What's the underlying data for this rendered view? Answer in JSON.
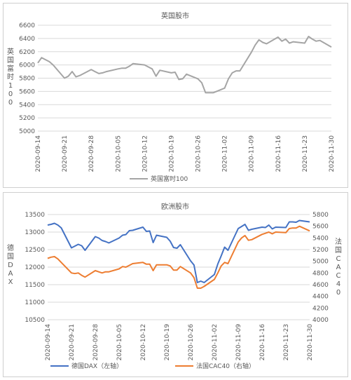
{
  "chart_data": [
    {
      "type": "line",
      "title": "英国股市",
      "ylabel": "英国富时100",
      "ylim": [
        5000,
        6600
      ],
      "yticks": [
        5000,
        5200,
        5400,
        5600,
        5800,
        6000,
        6200,
        6400,
        6600
      ],
      "x_tick_labels": [
        "2020-09-14",
        "2020-09-21",
        "2020-09-28",
        "2020-10-05",
        "2020-10-12",
        "2020-10-19",
        "2020-10-26",
        "2020-11-02",
        "2020-11-09",
        "2020-11-16",
        "2020-11-23",
        "2020-11-30"
      ],
      "legend_position": "bottom",
      "series": [
        {
          "name": "英国富时100",
          "color": "#a5a5a5",
          "points": [
            [
              "2020-09-14",
              6030
            ],
            [
              "2020-09-15",
              6110
            ],
            [
              "2020-09-16",
              6080
            ],
            [
              "2020-09-17",
              6050
            ],
            [
              "2020-09-18",
              6000
            ],
            [
              "2020-09-21",
              5800
            ],
            [
              "2020-09-22",
              5830
            ],
            [
              "2020-09-23",
              5900
            ],
            [
              "2020-09-24",
              5820
            ],
            [
              "2020-09-25",
              5840
            ],
            [
              "2020-09-28",
              5930
            ],
            [
              "2020-09-29",
              5900
            ],
            [
              "2020-09-30",
              5870
            ],
            [
              "2020-10-01",
              5880
            ],
            [
              "2020-10-02",
              5900
            ],
            [
              "2020-10-05",
              5940
            ],
            [
              "2020-10-06",
              5950
            ],
            [
              "2020-10-07",
              5950
            ],
            [
              "2020-10-08",
              5980
            ],
            [
              "2020-10-09",
              6020
            ],
            [
              "2020-10-12",
              6000
            ],
            [
              "2020-10-13",
              5970
            ],
            [
              "2020-10-14",
              5940
            ],
            [
              "2020-10-15",
              5830
            ],
            [
              "2020-10-16",
              5920
            ],
            [
              "2020-10-19",
              5880
            ],
            [
              "2020-10-20",
              5890
            ],
            [
              "2020-10-21",
              5780
            ],
            [
              "2020-10-22",
              5790
            ],
            [
              "2020-10-23",
              5860
            ],
            [
              "2020-10-26",
              5790
            ],
            [
              "2020-10-27",
              5730
            ],
            [
              "2020-10-28",
              5580
            ],
            [
              "2020-10-29",
              5580
            ],
            [
              "2020-10-30",
              5580
            ],
            [
              "2020-11-02",
              5650
            ],
            [
              "2020-11-03",
              5790
            ],
            [
              "2020-11-04",
              5880
            ],
            [
              "2020-11-05",
              5910
            ],
            [
              "2020-11-06",
              5910
            ],
            [
              "2020-11-09",
              6190
            ],
            [
              "2020-11-10",
              6300
            ],
            [
              "2020-11-11",
              6380
            ],
            [
              "2020-11-12",
              6340
            ],
            [
              "2020-11-13",
              6320
            ],
            [
              "2020-11-16",
              6420
            ],
            [
              "2020-11-17",
              6360
            ],
            [
              "2020-11-18",
              6390
            ],
            [
              "2020-11-19",
              6330
            ],
            [
              "2020-11-20",
              6350
            ],
            [
              "2020-11-23",
              6330
            ],
            [
              "2020-11-24",
              6430
            ],
            [
              "2020-11-25",
              6390
            ],
            [
              "2020-11-26",
              6360
            ],
            [
              "2020-11-27",
              6370
            ],
            [
              "2020-11-30",
              6270
            ]
          ]
        }
      ]
    },
    {
      "type": "line",
      "title": "欧洲股市",
      "ylabel_left": "德国DAX",
      "ylabel_right": "法国CAC40",
      "ylim_left": [
        10500,
        13500
      ],
      "yticks_left": [
        10500,
        11000,
        11500,
        12000,
        12500,
        13000,
        13500
      ],
      "ylim_right": [
        4000,
        5800
      ],
      "yticks_right": [
        4000,
        4200,
        4400,
        4600,
        4800,
        5000,
        5200,
        5400,
        5600,
        5800
      ],
      "x_tick_labels": [
        "2020-09-14",
        "2020-09-21",
        "2020-09-28",
        "2020-10-05",
        "2020-10-12",
        "2020-10-19",
        "2020-10-26",
        "2020-11-02",
        "2020-11-09",
        "2020-11-16",
        "2020-11-23",
        "2020-11-30"
      ],
      "legend_position": "bottom",
      "series": [
        {
          "name": "德国DAX（左轴）",
          "axis": "left",
          "color": "#4472c4",
          "points": [
            [
              "2020-09-14",
              13200
            ],
            [
              "2020-09-15",
              13220
            ],
            [
              "2020-09-16",
              13250
            ],
            [
              "2020-09-17",
              13200
            ],
            [
              "2020-09-18",
              13120
            ],
            [
              "2020-09-21",
              12550
            ],
            [
              "2020-09-22",
              12600
            ],
            [
              "2020-09-23",
              12650
            ],
            [
              "2020-09-24",
              12610
            ],
            [
              "2020-09-25",
              12480
            ],
            [
              "2020-09-28",
              12870
            ],
            [
              "2020-09-29",
              12830
            ],
            [
              "2020-09-30",
              12760
            ],
            [
              "2020-10-01",
              12730
            ],
            [
              "2020-10-02",
              12690
            ],
            [
              "2020-10-05",
              12830
            ],
            [
              "2020-10-06",
              12910
            ],
            [
              "2020-10-07",
              12930
            ],
            [
              "2020-10-08",
              13040
            ],
            [
              "2020-10-09",
              13050
            ],
            [
              "2020-10-12",
              13140
            ],
            [
              "2020-10-13",
              13020
            ],
            [
              "2020-10-14",
              13030
            ],
            [
              "2020-10-15",
              12700
            ],
            [
              "2020-10-16",
              12910
            ],
            [
              "2020-10-19",
              12850
            ],
            [
              "2020-10-20",
              12740
            ],
            [
              "2020-10-21",
              12560
            ],
            [
              "2020-10-22",
              12540
            ],
            [
              "2020-10-23",
              12640
            ],
            [
              "2020-10-26",
              12180
            ],
            [
              "2020-10-27",
              12060
            ],
            [
              "2020-10-28",
              11560
            ],
            [
              "2020-10-29",
              11600
            ],
            [
              "2020-10-30",
              11560
            ],
            [
              "2020-11-02",
              11790
            ],
            [
              "2020-11-03",
              12090
            ],
            [
              "2020-11-04",
              12320
            ],
            [
              "2020-11-05",
              12570
            ],
            [
              "2020-11-06",
              12480
            ],
            [
              "2020-11-09",
              13100
            ],
            [
              "2020-11-10",
              13160
            ],
            [
              "2020-11-11",
              13220
            ],
            [
              "2020-11-12",
              13050
            ],
            [
              "2020-11-13",
              13080
            ],
            [
              "2020-11-16",
              13140
            ],
            [
              "2020-11-17",
              13130
            ],
            [
              "2020-11-18",
              13200
            ],
            [
              "2020-11-19",
              13090
            ],
            [
              "2020-11-20",
              13140
            ],
            [
              "2020-11-23",
              13130
            ],
            [
              "2020-11-24",
              13290
            ],
            [
              "2020-11-25",
              13290
            ],
            [
              "2020-11-26",
              13280
            ],
            [
              "2020-11-27",
              13330
            ],
            [
              "2020-11-30",
              13290
            ]
          ]
        },
        {
          "name": "法国CAC40（右轴）",
          "axis": "right",
          "color": "#ed7d31",
          "points": [
            [
              "2020-09-14",
              5050
            ],
            [
              "2020-09-15",
              5070
            ],
            [
              "2020-09-16",
              5080
            ],
            [
              "2020-09-17",
              5040
            ],
            [
              "2020-09-18",
              4980
            ],
            [
              "2020-09-21",
              4800
            ],
            [
              "2020-09-22",
              4790
            ],
            [
              "2020-09-23",
              4800
            ],
            [
              "2020-09-24",
              4760
            ],
            [
              "2020-09-25",
              4730
            ],
            [
              "2020-09-28",
              4840
            ],
            [
              "2020-09-29",
              4820
            ],
            [
              "2020-09-30",
              4800
            ],
            [
              "2020-10-01",
              4820
            ],
            [
              "2020-10-02",
              4820
            ],
            [
              "2020-10-05",
              4870
            ],
            [
              "2020-10-06",
              4910
            ],
            [
              "2020-10-07",
              4900
            ],
            [
              "2020-10-08",
              4930
            ],
            [
              "2020-10-09",
              4960
            ],
            [
              "2020-10-12",
              4980
            ],
            [
              "2020-10-13",
              4950
            ],
            [
              "2020-10-14",
              4950
            ],
            [
              "2020-10-15",
              4840
            ],
            [
              "2020-10-16",
              4940
            ],
            [
              "2020-10-19",
              4940
            ],
            [
              "2020-10-20",
              4920
            ],
            [
              "2020-10-21",
              4850
            ],
            [
              "2020-10-22",
              4850
            ],
            [
              "2020-10-23",
              4910
            ],
            [
              "2020-10-26",
              4800
            ],
            [
              "2020-10-27",
              4720
            ],
            [
              "2020-10-28",
              4540
            ],
            [
              "2020-10-29",
              4540
            ],
            [
              "2020-10-30",
              4570
            ],
            [
              "2020-11-02",
              4690
            ],
            [
              "2020-11-03",
              4800
            ],
            [
              "2020-11-04",
              4920
            ],
            [
              "2020-11-05",
              4980
            ],
            [
              "2020-11-06",
              4960
            ],
            [
              "2020-11-09",
              5330
            ],
            [
              "2020-11-10",
              5400
            ],
            [
              "2020-11-11",
              5440
            ],
            [
              "2020-11-12",
              5360
            ],
            [
              "2020-11-13",
              5370
            ],
            [
              "2020-11-16",
              5460
            ],
            [
              "2020-11-17",
              5480
            ],
            [
              "2020-11-18",
              5500
            ],
            [
              "2020-11-19",
              5470
            ],
            [
              "2020-11-20",
              5500
            ],
            [
              "2020-11-23",
              5490
            ],
            [
              "2020-11-24",
              5560
            ],
            [
              "2020-11-25",
              5570
            ],
            [
              "2020-11-26",
              5570
            ],
            [
              "2020-11-27",
              5600
            ],
            [
              "2020-11-30",
              5520
            ]
          ]
        }
      ]
    }
  ]
}
